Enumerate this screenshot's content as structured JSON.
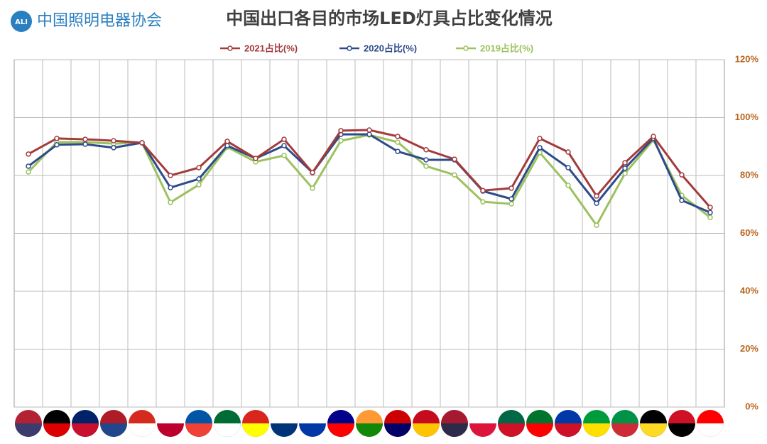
{
  "chart_data": {
    "type": "line",
    "logo_text": "中国照明电器协会",
    "title": "中国出口各目的市场LED灯具占比变化情况",
    "categories": [
      null,
      null,
      null,
      null,
      null,
      null,
      null,
      null,
      null,
      null,
      null,
      null,
      null,
      null,
      null,
      null,
      null,
      null,
      null,
      null,
      null,
      null,
      null,
      null,
      null
    ],
    "series": [
      {
        "name": "2021占比(%)",
        "color": "#a33b3b",
        "values": [
          87.4,
          92.8,
          92.5,
          92,
          91.3,
          80,
          82.7,
          91.8,
          85.9,
          92.5,
          81,
          95.5,
          95.7,
          93.5,
          88.9,
          85.6,
          74.8,
          75.6,
          92.8,
          88.1,
          72.9,
          84.4,
          93.5,
          80.2,
          69
        ]
      },
      {
        "name": "2020占比(%)",
        "color": "#2d4b8a",
        "values": [
          83.2,
          90.6,
          90.8,
          89.6,
          91.3,
          75.8,
          78.8,
          90.3,
          85.9,
          90.3,
          81,
          94.2,
          94.2,
          88.3,
          85.4,
          85.4,
          74.6,
          71.9,
          89.6,
          82.7,
          70.4,
          82.5,
          92.8,
          71.4,
          67.2
        ]
      },
      {
        "name": "2019占比(%)",
        "color": "#9cc15e",
        "values": [
          81.2,
          91.5,
          91.5,
          91,
          91.3,
          70.7,
          76.8,
          89.8,
          84.7,
          86.9,
          75.6,
          92,
          94,
          91.5,
          83.2,
          80.2,
          70.9,
          70.2,
          87.9,
          76.6,
          62.8,
          80.7,
          92.3,
          73.1,
          65.5
        ]
      }
    ],
    "ylim": [
      0,
      120
    ],
    "yticks": [
      {
        "value": 0,
        "label": "0%"
      },
      {
        "value": 20,
        "label": "20%"
      },
      {
        "value": 40,
        "label": "40%"
      },
      {
        "value": 60,
        "label": "60%"
      },
      {
        "value": 80,
        "label": "80%"
      },
      {
        "value": 100,
        "label": "100%"
      },
      {
        "value": 120,
        "label": "120%"
      }
    ],
    "grid": true
  }
}
